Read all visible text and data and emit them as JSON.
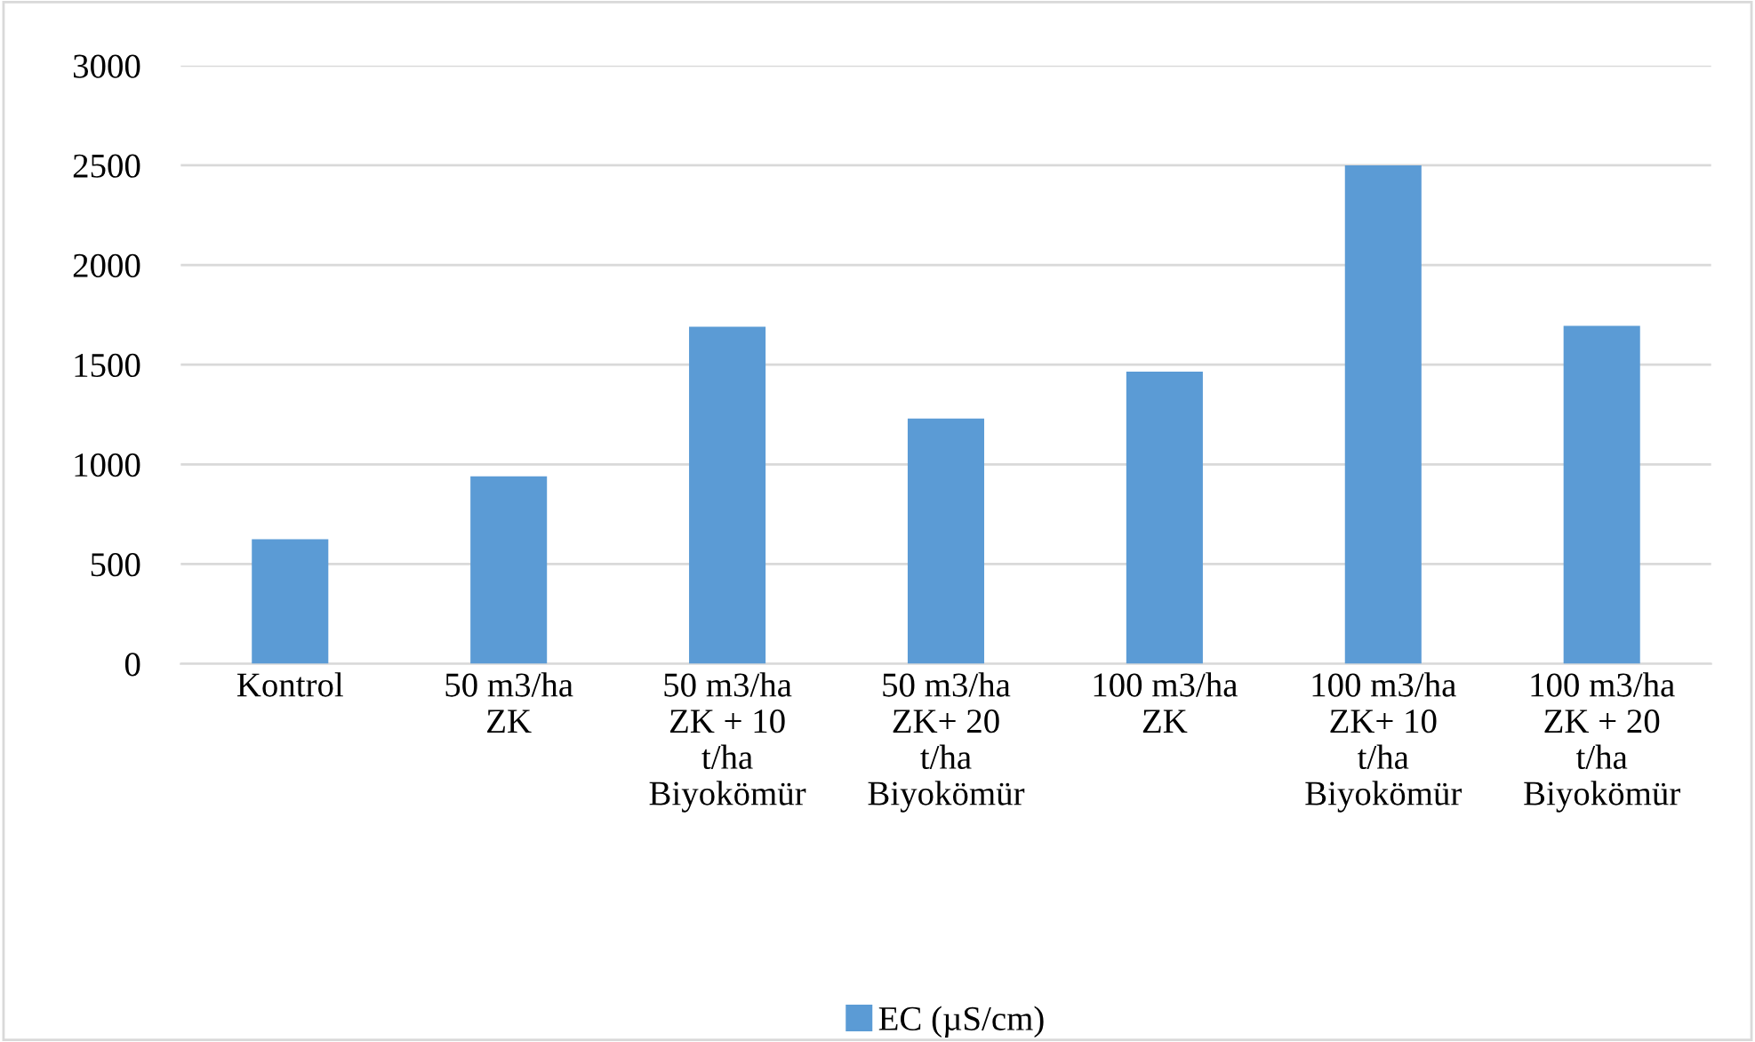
{
  "chart_data": {
    "type": "bar",
    "categories": [
      "Kontrol",
      "50 m3/ha\nZK",
      "50 m3/ha\nZK + 10\nt/ha\nBiyokömür",
      "50 m3/ha\nZK+ 20\nt/ha\nBiyokömür",
      "100 m3/ha\nZK",
      "100 m3/ha\nZK+ 10\nt/ha\nBiyokömür",
      "100 m3/ha\nZK + 20\nt/ha\nBiyokömür"
    ],
    "series": [
      {
        "name": "EC (µS/cm)",
        "color": "#5b9bd5",
        "values": [
          625,
          940,
          1690,
          1230,
          1465,
          2500,
          1695
        ]
      }
    ],
    "ylim": [
      0,
      3000
    ],
    "yticks": [
      0,
      500,
      1000,
      1500,
      2000,
      2500,
      3000
    ],
    "grid": "y",
    "legend": "bottom"
  }
}
